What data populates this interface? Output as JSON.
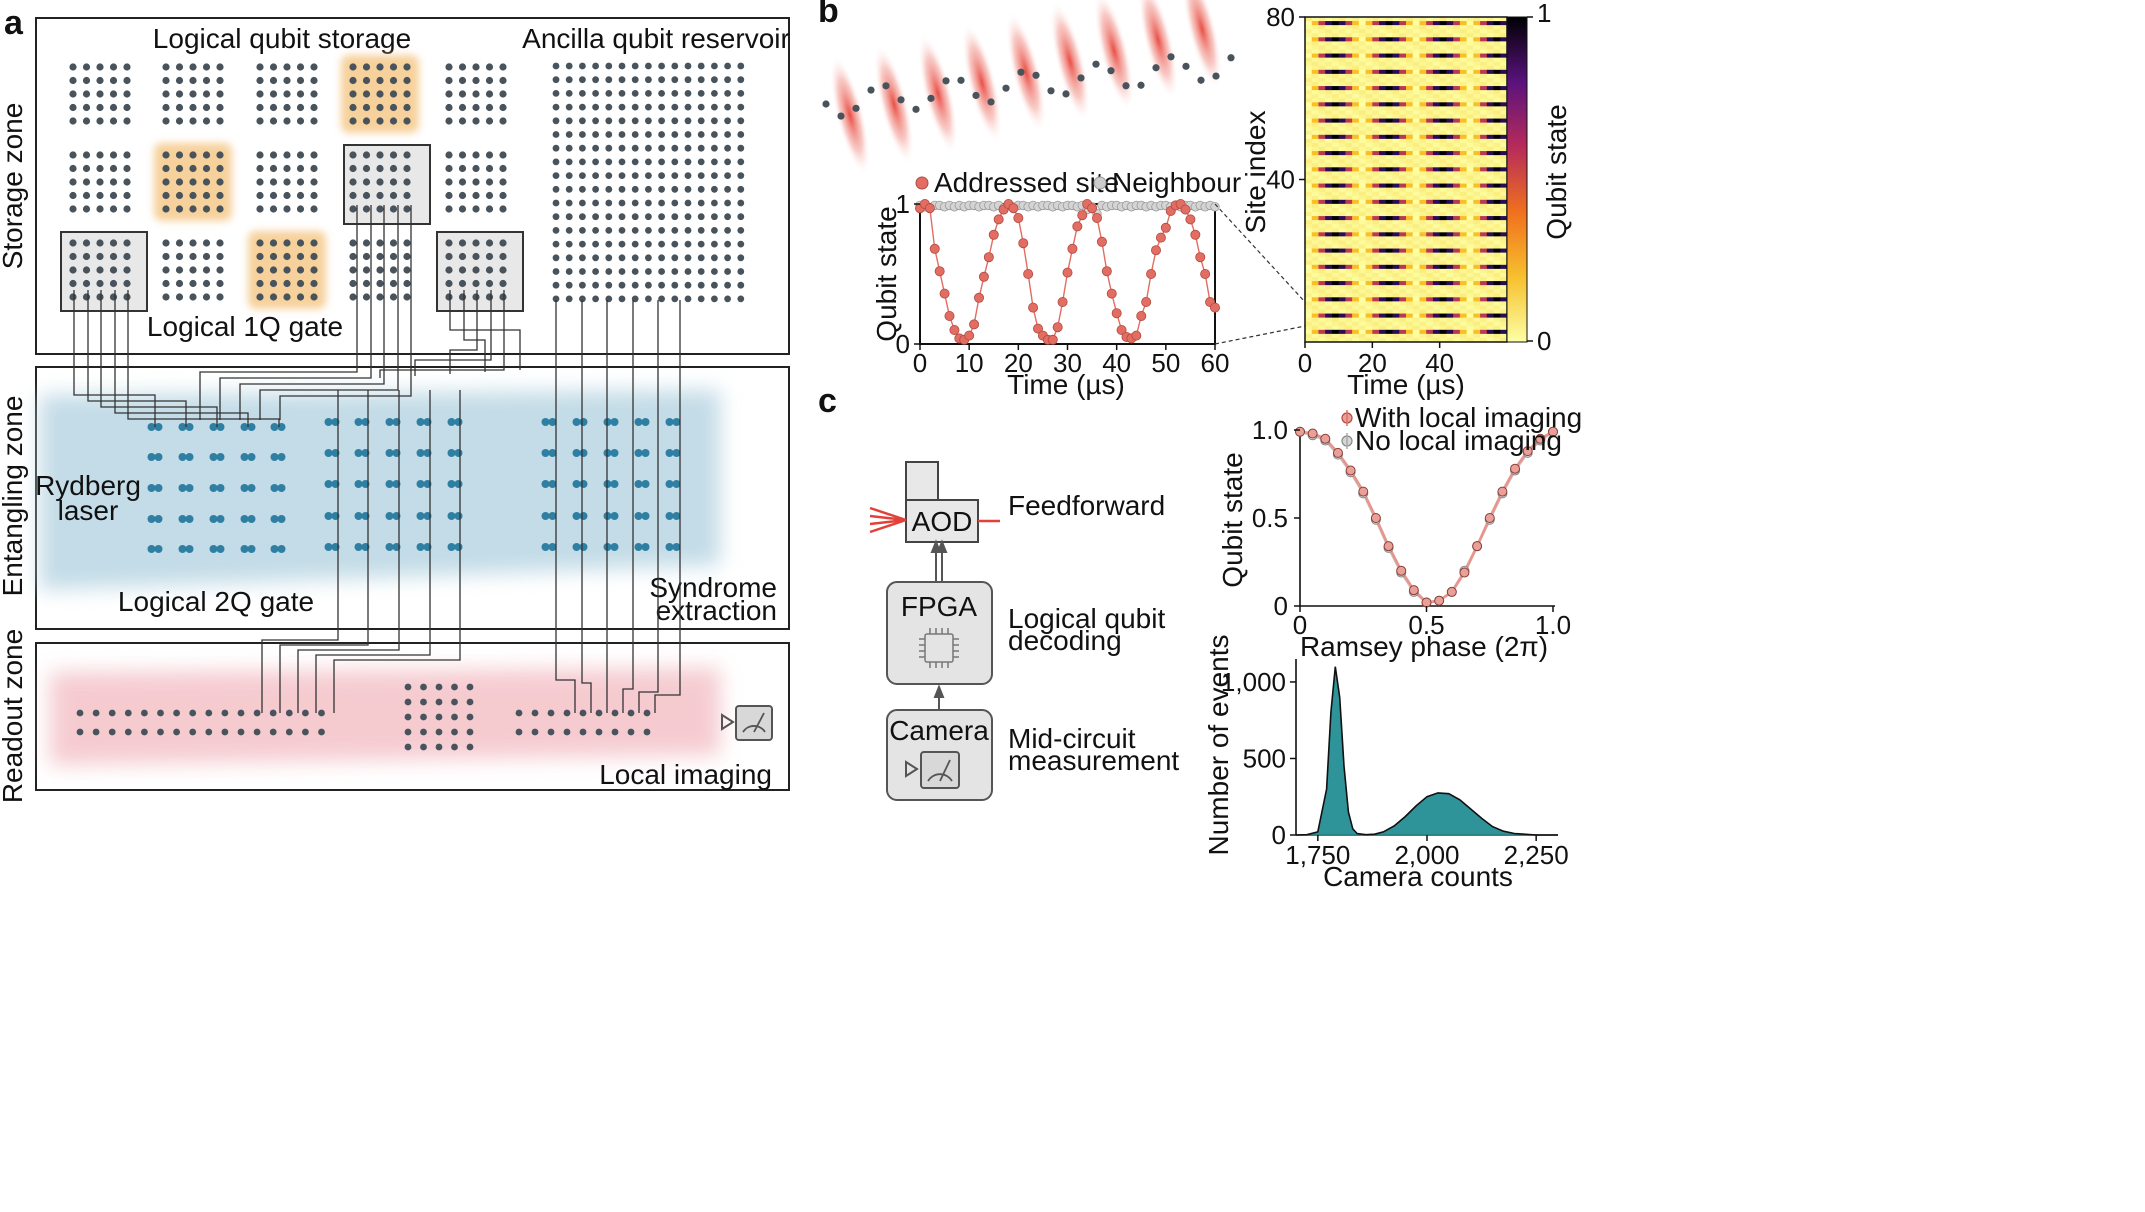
{
  "panel_a": {
    "letter": "a",
    "storage_zone": {
      "label": "Storage zone",
      "logical_qubit_storage": "Logical qubit storage",
      "ancilla_reservoir": "Ancilla qubit reservoir",
      "logical_1q_gate": "Logical 1Q gate"
    },
    "entangling_zone": {
      "label": "Entangling zone",
      "rydberg_laser": [
        "Rydberg",
        "laser"
      ],
      "logical_2q_gate": "Logical 2Q gate",
      "syndrome_extraction": [
        "Syndrome",
        "extraction"
      ]
    },
    "readout_zone": {
      "label": "Readout zone",
      "local_imaging": "Local imaging"
    },
    "colors": {
      "atom": "#48535c",
      "highlight": "#f5c98a",
      "entangling_band": "#b9d6e3",
      "readout_band": "#f4c6cc",
      "blue_atom": "#2f7fa3"
    }
  },
  "panel_b": {
    "letter": "b",
    "legend": {
      "addressed": "Addressed site",
      "neighbour": "Neighbour"
    },
    "colors": {
      "addressed": "#e26d62",
      "neighbour": "#cccccc"
    },
    "line_plot": {
      "xlabel": "Time (µs)",
      "ylabel": "Qubit state",
      "xticks": [
        "0",
        "10",
        "20",
        "30",
        "40",
        "50",
        "60"
      ],
      "yticks": [
        "0",
        "1"
      ]
    },
    "heatmap": {
      "xlabel": "Time (µs)",
      "ylabel": "Site index",
      "xticks": [
        "0",
        "20",
        "40"
      ],
      "yticks": [
        "40",
        "80"
      ],
      "colorbar_label": "Qubit state",
      "colorbar_ticks": [
        "0",
        "1"
      ]
    }
  },
  "panel_c": {
    "letter": "c",
    "boxes": {
      "aod": "AOD",
      "fpga": "FPGA",
      "camera": "Camera"
    },
    "labels": {
      "feedforward": "Feedforward",
      "decoding": [
        "Logical qubit",
        "decoding"
      ],
      "measurement": [
        "Mid-circuit",
        "measurement"
      ]
    },
    "ramsey": {
      "legend_with": "With local imaging",
      "legend_without": "No local imaging",
      "xlabel": "Ramsey phase (2π)",
      "ylabel": "Qubit state",
      "xticks": [
        "0",
        "0.5",
        "1.0"
      ],
      "yticks": [
        "0",
        "0.5",
        "1.0"
      ]
    },
    "histogram": {
      "xlabel": "Camera counts",
      "ylabel": "Number of events",
      "xticks": [
        "1,750",
        "2,000",
        "2,250"
      ],
      "yticks": [
        "0",
        "500",
        "1,000"
      ]
    }
  },
  "chart_data": [
    {
      "type": "line",
      "series": [
        {
          "name": "Addressed site",
          "x": [
            0,
            1,
            2,
            3,
            4,
            5,
            6,
            7,
            8,
            9,
            10,
            11,
            12,
            13,
            14,
            15,
            16,
            17,
            18,
            19,
            20,
            21,
            22,
            23,
            24,
            25,
            26,
            27,
            28,
            29,
            30,
            31,
            32,
            33,
            34,
            35,
            36,
            37,
            38,
            39,
            40,
            41,
            42,
            43,
            44,
            45,
            46,
            47,
            48,
            49,
            50,
            51,
            52,
            53,
            54,
            55,
            56,
            57,
            58,
            59,
            60
          ],
          "y": [
            0.97,
            1.0,
            0.97,
            0.68,
            0.52,
            0.36,
            0.2,
            0.1,
            0.04,
            0.03,
            0.06,
            0.14,
            0.33,
            0.48,
            0.62,
            0.78,
            0.89,
            0.96,
            1.0,
            0.97,
            0.9,
            0.72,
            0.5,
            0.26,
            0.11,
            0.06,
            0.03,
            0.03,
            0.12,
            0.3,
            0.51,
            0.68,
            0.84,
            0.92,
            1.0,
            0.97,
            0.9,
            0.73,
            0.52,
            0.36,
            0.22,
            0.1,
            0.05,
            0.04,
            0.06,
            0.2,
            0.3,
            0.5,
            0.67,
            0.76,
            0.83,
            0.95,
            0.99,
            1.0,
            0.96,
            0.89,
            0.78,
            0.62,
            0.5,
            0.3,
            0.26
          ]
        },
        {
          "name": "Neighbour",
          "x": [
            0,
            1,
            2,
            3,
            4,
            5,
            6,
            7,
            8,
            9,
            10,
            11,
            12,
            13,
            14,
            15,
            16,
            17,
            18,
            19,
            20,
            21,
            22,
            23,
            24,
            25,
            26,
            27,
            28,
            29,
            30,
            31,
            32,
            33,
            34,
            35,
            36,
            37,
            38,
            39,
            40,
            41,
            42,
            43,
            44,
            45,
            46,
            47,
            48,
            49,
            50,
            51,
            52,
            53,
            54,
            55,
            56,
            57,
            58,
            59,
            60
          ],
          "y": [
            0.99,
            0.98,
            0.97,
            0.99,
            0.99,
            0.98,
            0.99,
            0.98,
            0.99,
            0.98,
            0.99,
            0.99,
            0.98,
            0.99,
            0.99,
            0.98,
            0.99,
            0.97,
            0.99,
            0.98,
            0.99,
            0.99,
            0.98,
            0.99,
            0.98,
            0.99,
            0.99,
            0.98,
            0.99,
            0.98,
            0.99,
            0.99,
            0.98,
            0.99,
            0.96,
            0.98,
            0.93,
            0.99,
            0.98,
            0.99,
            0.99,
            0.98,
            0.99,
            0.98,
            0.99,
            0.99,
            0.98,
            0.99,
            0.98,
            0.99,
            0.99,
            0.98,
            0.99,
            0.98,
            0.99,
            0.99,
            0.98,
            0.99,
            0.98,
            0.99,
            0.98
          ]
        }
      ],
      "xlabel": "Time (µs)",
      "ylabel": "Qubit state",
      "xlim": [
        0,
        60
      ],
      "ylim": [
        0,
        1
      ],
      "grid": false,
      "legend": "top"
    },
    {
      "type": "heatmap",
      "description_rows": 80,
      "x_range": [
        0,
        60
      ],
      "y_range": [
        0,
        80
      ],
      "period_us": 16,
      "xlabel": "Time (µs)",
      "ylabel": "Site index",
      "colorbar": {
        "label": "Qubit state",
        "range": [
          0,
          1
        ]
      }
    },
    {
      "type": "line",
      "series": [
        {
          "name": "With local imaging",
          "x": [
            0,
            0.05,
            0.1,
            0.15,
            0.2,
            0.25,
            0.3,
            0.35,
            0.4,
            0.45,
            0.5,
            0.55,
            0.6,
            0.65,
            0.7,
            0.75,
            0.8,
            0.85,
            0.9,
            0.95,
            1.0
          ],
          "y": [
            0.99,
            0.98,
            0.95,
            0.87,
            0.77,
            0.65,
            0.5,
            0.34,
            0.2,
            0.09,
            0.02,
            0.03,
            0.08,
            0.19,
            0.34,
            0.5,
            0.65,
            0.78,
            0.88,
            0.95,
            0.99
          ]
        },
        {
          "name": "No local imaging",
          "x": [
            0,
            0.05,
            0.1,
            0.15,
            0.2,
            0.25,
            0.3,
            0.35,
            0.4,
            0.45,
            0.5,
            0.55,
            0.6,
            0.65,
            0.7,
            0.75,
            0.8,
            0.85,
            0.9,
            0.95,
            1.0
          ],
          "y": [
            0.99,
            0.97,
            0.94,
            0.86,
            0.76,
            0.64,
            0.49,
            0.33,
            0.19,
            0.08,
            0.02,
            0.03,
            0.08,
            0.2,
            0.34,
            0.49,
            0.64,
            0.77,
            0.87,
            0.94,
            0.99
          ]
        }
      ],
      "xlabel": "Ramsey phase (2π)",
      "ylabel": "Qubit state",
      "xlim": [
        0,
        1
      ],
      "ylim": [
        0,
        1
      ],
      "legend": "top-right"
    },
    {
      "type": "histogram",
      "x": [
        1700,
        1725,
        1750,
        1770,
        1780,
        1790,
        1800,
        1810,
        1820,
        1830,
        1840,
        1860,
        1880,
        1900,
        1925,
        1950,
        1975,
        2000,
        2025,
        2050,
        2075,
        2100,
        2125,
        2150,
        2175,
        2200,
        2250,
        2300
      ],
      "y": [
        0,
        2,
        20,
        300,
        800,
        1100,
        900,
        450,
        150,
        40,
        10,
        2,
        5,
        20,
        60,
        120,
        190,
        250,
        275,
        270,
        230,
        170,
        110,
        55,
        25,
        10,
        0,
        0
      ],
      "xlabel": "Camera counts",
      "ylabel": "Number of events",
      "xlim": [
        1700,
        2300
      ],
      "ylim": [
        0,
        1150
      ]
    }
  ]
}
